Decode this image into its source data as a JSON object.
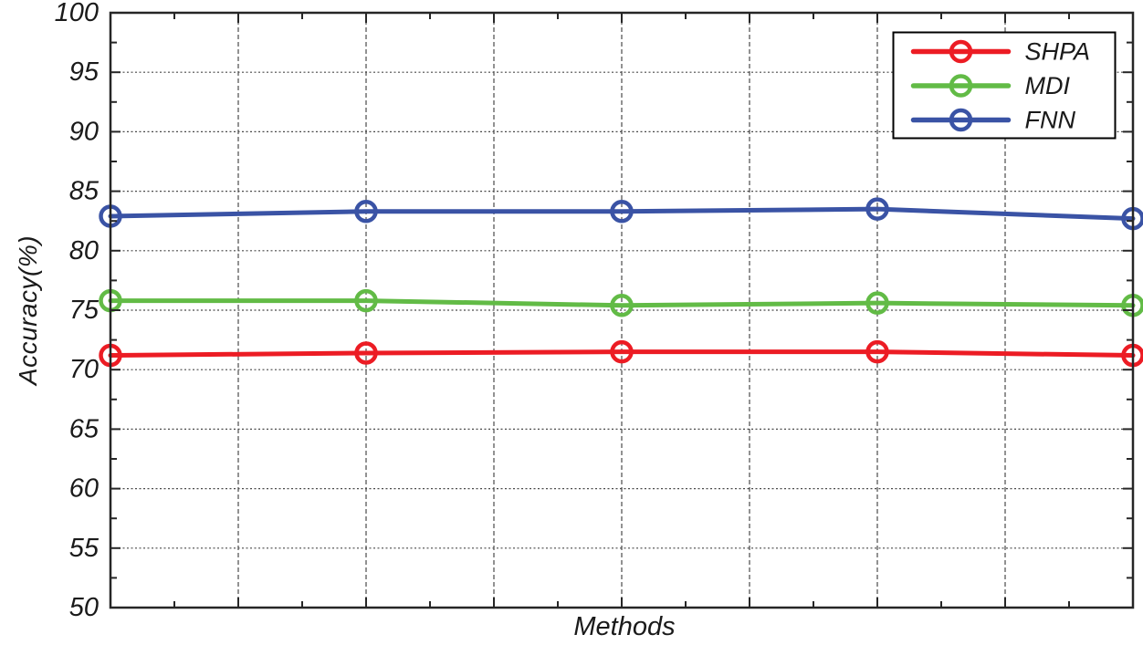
{
  "chart_data": {
    "type": "line",
    "title": "",
    "xlabel": "Methods",
    "ylabel": "Accuracy(%)",
    "ylim": [
      50,
      100
    ],
    "y_ticks": [
      50,
      55,
      60,
      65,
      70,
      75,
      80,
      85,
      90,
      95,
      100
    ],
    "x_tick_labels": [],
    "grid": true,
    "legend_position": "top-right",
    "x": [
      1,
      2,
      3,
      4,
      5
    ],
    "series": [
      {
        "name": "SHPA",
        "color": "#EC1C24",
        "marker": "circle",
        "values": [
          71.2,
          71.4,
          71.5,
          71.5,
          71.2
        ]
      },
      {
        "name": "MDI",
        "color": "#62BB46",
        "marker": "circle",
        "values": [
          75.8,
          75.8,
          75.4,
          75.6,
          75.4
        ]
      },
      {
        "name": "FNN",
        "color": "#3A53A5",
        "marker": "circle",
        "values": [
          82.9,
          83.3,
          83.3,
          83.5,
          82.7
        ]
      }
    ],
    "axis_color": "#262626",
    "grid_color": "#4a4a4a",
    "text_color": "#1a1a1a",
    "legend_border_color": "#000000",
    "legend_background": "#ffffff"
  }
}
